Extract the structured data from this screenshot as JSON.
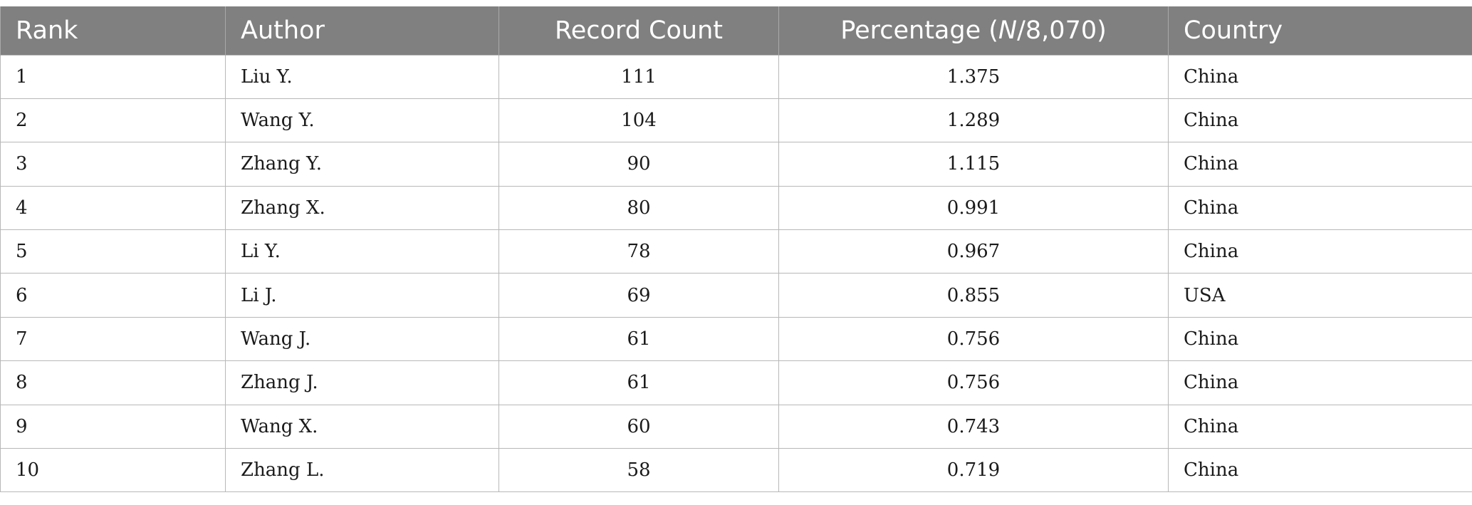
{
  "table": {
    "headers": {
      "rank": "Rank",
      "author": "Author",
      "count": "Record Count",
      "pct_prefix": "Percentage (",
      "pct_italic": "N",
      "pct_suffix": "/8,070)",
      "country": "Country"
    },
    "rows": [
      {
        "rank": "1",
        "author": "Liu Y.",
        "count": "111",
        "pct": "1.375",
        "country": "China"
      },
      {
        "rank": "2",
        "author": "Wang Y.",
        "count": "104",
        "pct": "1.289",
        "country": "China"
      },
      {
        "rank": "3",
        "author": "Zhang Y.",
        "count": "90",
        "pct": "1.115",
        "country": "China"
      },
      {
        "rank": "4",
        "author": "Zhang X.",
        "count": "80",
        "pct": "0.991",
        "country": "China"
      },
      {
        "rank": "5",
        "author": "Li Y.",
        "count": "78",
        "pct": "0.967",
        "country": "China"
      },
      {
        "rank": "6",
        "author": "Li J.",
        "count": "69",
        "pct": "0.855",
        "country": "USA"
      },
      {
        "rank": "7",
        "author": "Wang J.",
        "count": "61",
        "pct": "0.756",
        "country": "China"
      },
      {
        "rank": "8",
        "author": "Zhang J.",
        "count": "61",
        "pct": "0.756",
        "country": "China"
      },
      {
        "rank": "9",
        "author": "Wang X.",
        "count": "60",
        "pct": "0.743",
        "country": "China"
      },
      {
        "rank": "10",
        "author": "Zhang L.",
        "count": "58",
        "pct": "0.719",
        "country": "China"
      }
    ]
  },
  "colors": {
    "header_bg": "#808080",
    "header_text": "#ffffff",
    "grid": "#b8b8b8"
  }
}
